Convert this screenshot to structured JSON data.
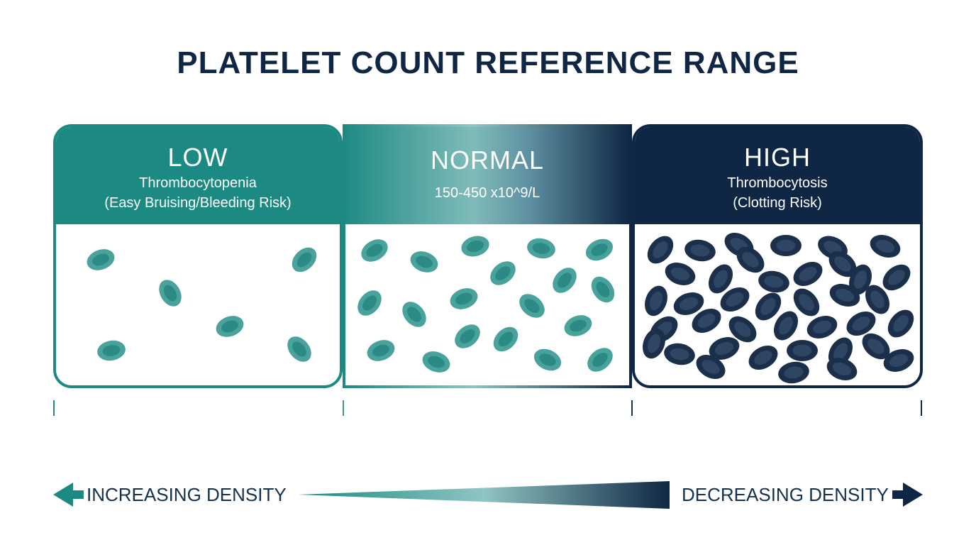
{
  "title": "PLATELET COUNT REFERENCE RANGE",
  "colors": {
    "teal": "#1c8a82",
    "light_teal": "#8fc5c2",
    "navy": "#0f2744",
    "cell_teal": "#3a9a94",
    "cell_navy": "#1a2f4c"
  },
  "panels": {
    "low": {
      "label": "LOW",
      "line1": "Thrombocytopenia",
      "line2": "(Easy Bruising/Bleeding Risk)"
    },
    "normal": {
      "label": "NORMAL",
      "line1": "150-450 x10^9/L"
    },
    "high": {
      "label": "HIGH",
      "line1": "Thrombocytosis",
      "line2": "(Clotting Risk)"
    }
  },
  "density": {
    "left_label": "INCREASING DENSITY",
    "right_label": "DECREASING DENSITY",
    "left_icon": "arrow-left-icon",
    "right_icon": "arrow-right-icon"
  }
}
